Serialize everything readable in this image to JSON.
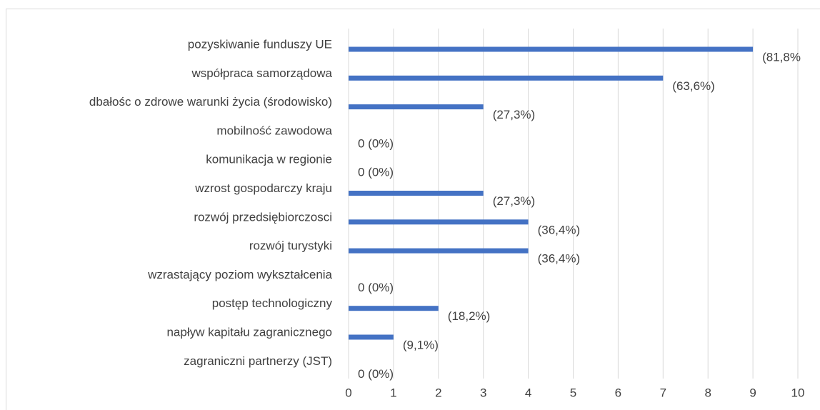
{
  "chart_data": {
    "type": "bar",
    "orientation": "horizontal",
    "categories": [
      "pozyskiwanie funduszy UE",
      "współpraca samorządowa",
      "dbałośc o zdrowe warunki życia (środowisko)",
      "mobilność zawodowa",
      "komunikacja w regionie",
      "wzrost gospodarczy kraju",
      "rozwój przedsiębiorczosci",
      "rozwój turystyki",
      "wzrastający poziom wykształcenia",
      "postęp technologiczny",
      "napływ kapitału zagranicznego",
      "zagraniczni partnerzy (JST)"
    ],
    "values": [
      9,
      7,
      3,
      0,
      0,
      3,
      4,
      4,
      0,
      2,
      1,
      0
    ],
    "value_labels": [
      "(81,8%",
      "(63,6%)",
      "(27,3%)",
      "0 (0%)",
      "0 (0%)",
      "(27,3%)",
      "(36,4%)",
      "(36,4%)",
      "0 (0%)",
      "(18,2%)",
      "(9,1%)",
      "0 (0%)"
    ],
    "color": "#4472c4",
    "xlim": [
      0,
      10
    ],
    "xticks": [
      0,
      1,
      2,
      3,
      4,
      5,
      6,
      7,
      8,
      9,
      10
    ],
    "grid": true
  }
}
